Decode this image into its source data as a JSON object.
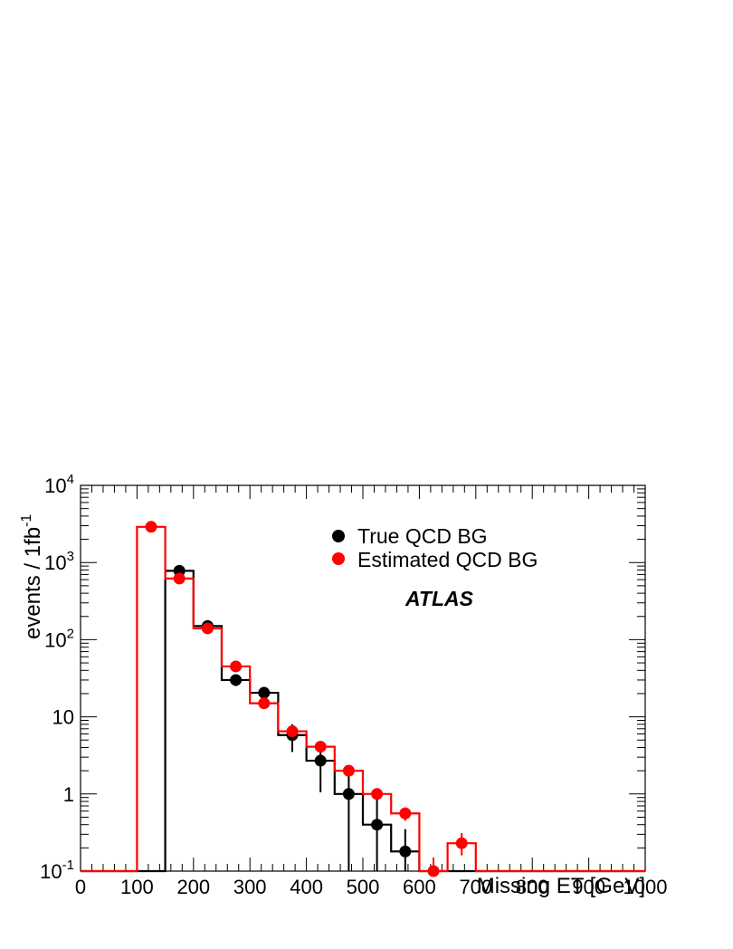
{
  "chart_data": {
    "type": "histogram",
    "title": "",
    "xlabel": "Missing ET [GeV]",
    "ylabel": "events / 1fb",
    "ylabel_superscript": "-1",
    "xlim": [
      0,
      1000
    ],
    "ylim": [
      0.1,
      10000
    ],
    "yscale": "log",
    "grid": false,
    "x_ticks": [
      "0",
      "100",
      "200",
      "300",
      "400",
      "500",
      "600",
      "700",
      "800",
      "900",
      "1000"
    ],
    "y_ticks": [
      {
        "value": 0.1,
        "base": "10",
        "sup": "-1"
      },
      {
        "value": 1,
        "base": "1",
        "sup": ""
      },
      {
        "value": 10,
        "base": "10",
        "sup": ""
      },
      {
        "value": 100,
        "base": "10",
        "sup": "2"
      },
      {
        "value": 1000,
        "base": "10",
        "sup": "3"
      },
      {
        "value": 10000,
        "base": "10",
        "sup": "4"
      }
    ],
    "annotation": "ATLAS",
    "legend_position": "top-right",
    "bin_edges": [
      0,
      50,
      100,
      150,
      200,
      250,
      300,
      350,
      400,
      450,
      500,
      550,
      600,
      650,
      700,
      750,
      800,
      850,
      900,
      950,
      1000
    ],
    "series": [
      {
        "name": "True QCD BG",
        "color": "#000000",
        "hist": [
          0.1,
          0.1,
          0.1,
          780,
          150,
          30,
          20.5,
          5.8,
          2.7,
          1.0,
          0.4,
          0.18,
          0.1,
          0.1,
          0.1,
          0.1,
          0.1,
          0.1,
          0.1,
          0.1
        ],
        "points": [
          {
            "x": 175,
            "y": 780,
            "lo": 730,
            "hi": 830
          },
          {
            "x": 225,
            "y": 150,
            "lo": 135,
            "hi": 165
          },
          {
            "x": 275,
            "y": 30,
            "lo": 25,
            "hi": 35
          },
          {
            "x": 325,
            "y": 20.5,
            "lo": 17,
            "hi": 24
          },
          {
            "x": 375,
            "y": 5.8,
            "lo": 3.5,
            "hi": 8
          },
          {
            "x": 425,
            "y": 2.7,
            "lo": 1.05,
            "hi": 4.3
          },
          {
            "x": 475,
            "y": 1.0,
            "lo": 0.1,
            "hi": 2.0
          },
          {
            "x": 525,
            "y": 0.4,
            "lo": 0.1,
            "hi": 0.9
          },
          {
            "x": 575,
            "y": 0.18,
            "lo": 0.1,
            "hi": 0.35
          }
        ]
      },
      {
        "name": "Estimated QCD BG",
        "color": "#ff0000",
        "hist": [
          0.1,
          0.1,
          2900,
          620,
          140,
          45,
          15,
          6.5,
          4.1,
          2.0,
          1.0,
          0.56,
          0.1,
          0.23,
          0.1,
          0.1,
          0.1,
          0.1,
          0.1,
          0.1
        ],
        "points": [
          {
            "x": 125,
            "y": 2900,
            "lo": 2800,
            "hi": 3000
          },
          {
            "x": 175,
            "y": 620,
            "lo": 580,
            "hi": 660
          },
          {
            "x": 225,
            "y": 140,
            "lo": 130,
            "hi": 150
          },
          {
            "x": 275,
            "y": 45,
            "lo": 41,
            "hi": 49
          },
          {
            "x": 325,
            "y": 15,
            "lo": 13.5,
            "hi": 16.5
          },
          {
            "x": 375,
            "y": 6.5,
            "lo": 5.8,
            "hi": 7.2
          },
          {
            "x": 425,
            "y": 4.1,
            "lo": 3.7,
            "hi": 4.5
          },
          {
            "x": 475,
            "y": 2.0,
            "lo": 1.8,
            "hi": 2.2
          },
          {
            "x": 525,
            "y": 1.0,
            "lo": 0.88,
            "hi": 1.12
          },
          {
            "x": 575,
            "y": 0.56,
            "lo": 0.45,
            "hi": 0.67
          },
          {
            "x": 625,
            "y": 0.1,
            "lo": 0.1,
            "hi": 0.15
          },
          {
            "x": 675,
            "y": 0.23,
            "lo": 0.16,
            "hi": 0.31
          }
        ]
      }
    ]
  }
}
